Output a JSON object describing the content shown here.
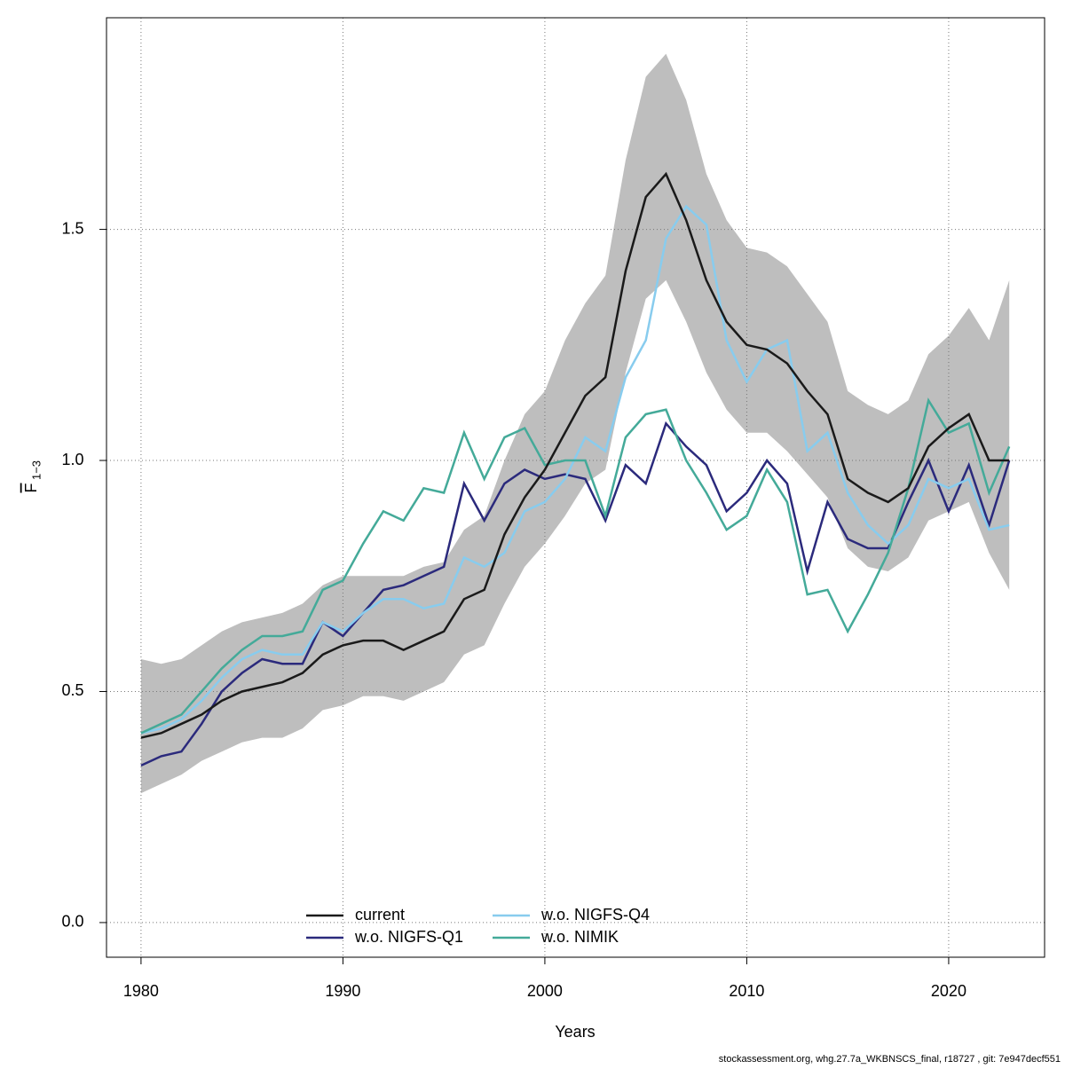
{
  "chart_data": {
    "type": "line",
    "x_label": "Years",
    "y_label": "F",
    "y_label_sub": "1−3",
    "footer": "stockassessment.org, whg.27.7a_WKBNSCS_final, r18727 , git: 7e947decf551",
    "x": [
      1980,
      1981,
      1982,
      1983,
      1984,
      1985,
      1986,
      1987,
      1988,
      1989,
      1990,
      1991,
      1992,
      1993,
      1994,
      1995,
      1996,
      1997,
      1998,
      1999,
      2000,
      2001,
      2002,
      2003,
      2004,
      2005,
      2006,
      2007,
      2008,
      2009,
      2010,
      2011,
      2012,
      2013,
      2014,
      2015,
      2016,
      2017,
      2018,
      2019,
      2020,
      2021,
      2022,
      2023
    ],
    "band": {
      "color": "#bebebe",
      "upper": [
        0.57,
        0.56,
        0.57,
        0.6,
        0.63,
        0.65,
        0.66,
        0.67,
        0.69,
        0.73,
        0.75,
        0.75,
        0.75,
        0.75,
        0.77,
        0.78,
        0.85,
        0.88,
        1.0,
        1.1,
        1.15,
        1.26,
        1.34,
        1.4,
        1.65,
        1.83,
        1.88,
        1.78,
        1.62,
        1.52,
        1.46,
        1.45,
        1.42,
        1.36,
        1.3,
        1.15,
        1.12,
        1.1,
        1.13,
        1.23,
        1.27,
        1.33,
        1.26,
        1.39
      ],
      "lower": [
        0.28,
        0.3,
        0.32,
        0.35,
        0.37,
        0.39,
        0.4,
        0.4,
        0.42,
        0.46,
        0.47,
        0.49,
        0.49,
        0.48,
        0.5,
        0.52,
        0.58,
        0.6,
        0.69,
        0.77,
        0.82,
        0.88,
        0.95,
        0.98,
        1.19,
        1.35,
        1.39,
        1.3,
        1.19,
        1.11,
        1.06,
        1.06,
        1.02,
        0.97,
        0.92,
        0.81,
        0.77,
        0.76,
        0.79,
        0.87,
        0.89,
        0.91,
        0.8,
        0.72
      ]
    },
    "series": [
      {
        "name": "current",
        "color": "#1a1a1a",
        "values": [
          0.4,
          0.41,
          0.43,
          0.45,
          0.48,
          0.5,
          0.51,
          0.52,
          0.54,
          0.58,
          0.6,
          0.61,
          0.61,
          0.59,
          0.61,
          0.63,
          0.7,
          0.72,
          0.84,
          0.92,
          0.98,
          1.06,
          1.14,
          1.18,
          1.41,
          1.57,
          1.62,
          1.52,
          1.39,
          1.3,
          1.25,
          1.24,
          1.21,
          1.15,
          1.1,
          0.96,
          0.93,
          0.91,
          0.94,
          1.03,
          1.07,
          1.1,
          1.0,
          1.0
        ]
      },
      {
        "name": "w.o. NIGFS-Q1",
        "color": "#2b2a7c",
        "values": [
          0.34,
          0.36,
          0.37,
          0.43,
          0.5,
          0.54,
          0.57,
          0.56,
          0.56,
          0.65,
          0.62,
          0.67,
          0.72,
          0.73,
          0.75,
          0.77,
          0.95,
          0.87,
          0.95,
          0.98,
          0.96,
          0.97,
          0.96,
          0.87,
          0.99,
          0.95,
          1.08,
          1.03,
          0.99,
          0.89,
          0.93,
          1.0,
          0.95,
          0.76,
          0.91,
          0.83,
          0.81,
          0.81,
          0.91,
          1.0,
          0.89,
          0.99,
          0.86,
          1.0
        ]
      },
      {
        "name": "w.o. NIGFS-Q4",
        "color": "#88ccee",
        "values": [
          0.41,
          0.42,
          0.44,
          0.48,
          0.53,
          0.57,
          0.59,
          0.58,
          0.58,
          0.65,
          0.63,
          0.67,
          0.7,
          0.7,
          0.68,
          0.69,
          0.79,
          0.77,
          0.8,
          0.89,
          0.91,
          0.96,
          1.05,
          1.02,
          1.18,
          1.26,
          1.48,
          1.55,
          1.51,
          1.26,
          1.17,
          1.24,
          1.26,
          1.02,
          1.06,
          0.93,
          0.86,
          0.82,
          0.86,
          0.96,
          0.94,
          0.96,
          0.85,
          0.86
        ]
      },
      {
        "name": "w.o. NIMIK",
        "color": "#44aa99",
        "values": [
          0.41,
          0.43,
          0.45,
          0.5,
          0.55,
          0.59,
          0.62,
          0.62,
          0.63,
          0.72,
          0.74,
          0.82,
          0.89,
          0.87,
          0.94,
          0.93,
          1.06,
          0.96,
          1.05,
          1.07,
          0.99,
          1.0,
          1.0,
          0.88,
          1.05,
          1.1,
          1.11,
          1.0,
          0.93,
          0.85,
          0.88,
          0.98,
          0.91,
          0.71,
          0.72,
          0.63,
          0.71,
          0.8,
          0.94,
          1.13,
          1.06,
          1.08,
          0.93,
          1.03
        ]
      }
    ],
    "xlim": [
      1978.29,
      2024.75
    ],
    "ylim": [
      -0.075,
      1.958
    ],
    "xticks": [
      1980,
      1990,
      2000,
      2010,
      2020
    ],
    "yticks": [
      {
        "value": 0,
        "label": "0.0"
      },
      0.5,
      {
        "value": 1,
        "label": "1.0"
      },
      1.5
    ],
    "grid": true,
    "legend": "bottom"
  }
}
